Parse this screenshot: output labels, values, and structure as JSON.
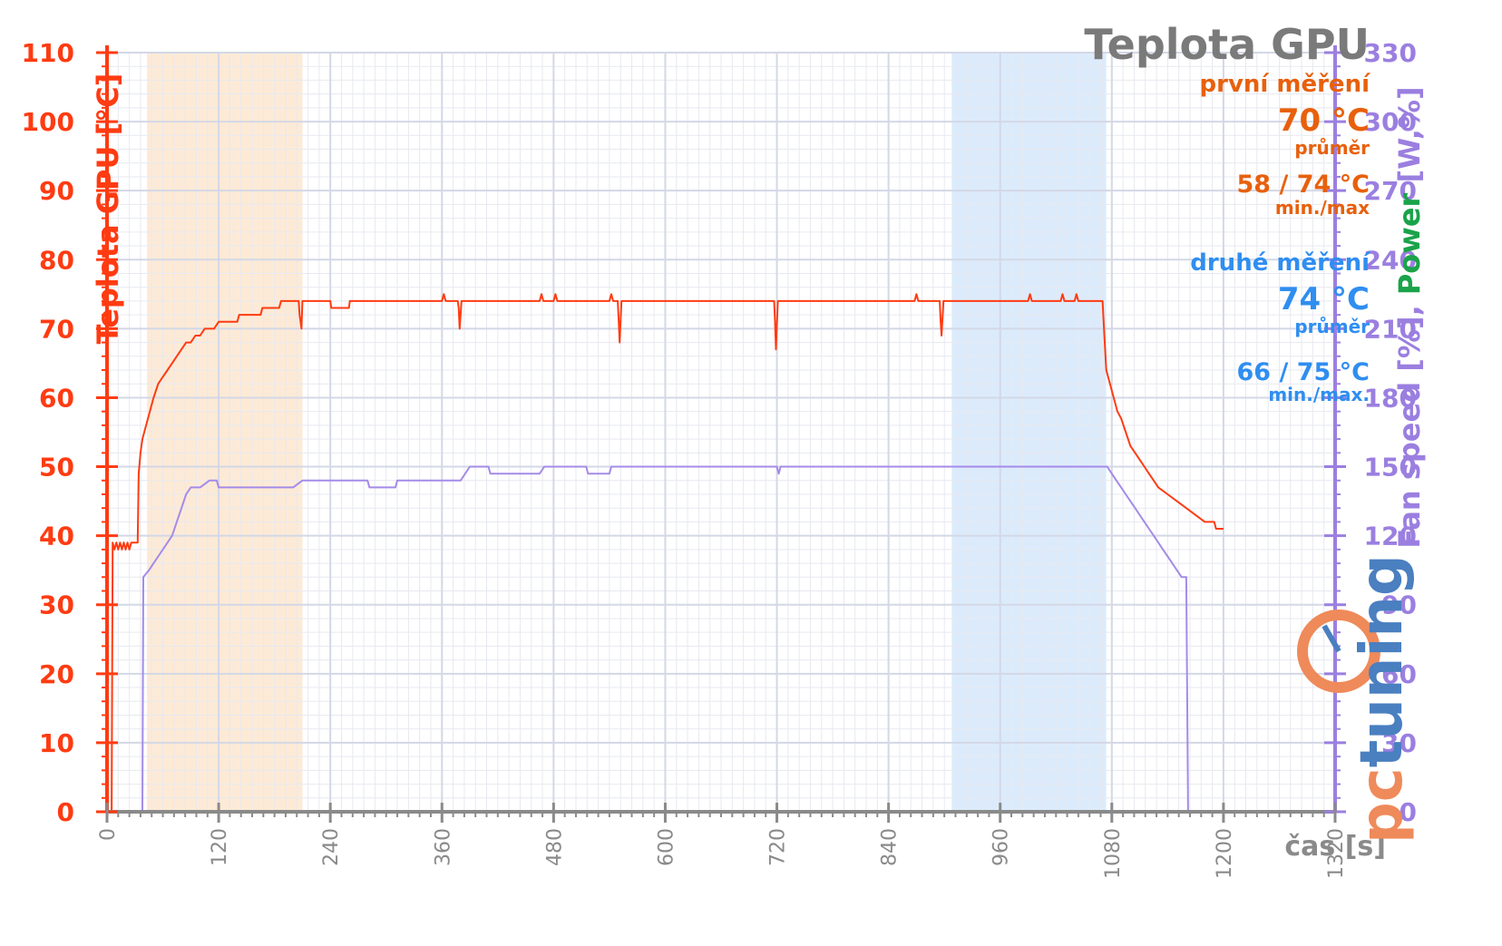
{
  "chart_data": {
    "type": "line",
    "title": "Teplota GPU",
    "xlabel": "čas [s]",
    "ylabel": "Teplota GPU [°C]",
    "y2label_parts": [
      {
        "text": "Fan speed [%], ",
        "color": "#9b7fe0"
      },
      {
        "text": "Power",
        "color": "#1aa34a"
      },
      {
        "text": " [W,%]",
        "color": "#9b7fe0"
      }
    ],
    "xlim": [
      0,
      1320
    ],
    "ylim": [
      0,
      110
    ],
    "y2lim": [
      0,
      330
    ],
    "x_ticks": [
      0,
      120,
      240,
      360,
      480,
      600,
      720,
      840,
      960,
      1080,
      1200,
      1320
    ],
    "y_ticks": [
      0,
      10,
      20,
      30,
      40,
      50,
      60,
      70,
      80,
      90,
      100,
      110
    ],
    "y2_ticks": [
      0,
      30,
      60,
      90,
      120,
      150,
      180,
      210,
      240,
      270,
      300,
      330
    ],
    "grid": true,
    "shaded_regions": [
      {
        "x_start": 43,
        "x_end": 210,
        "color": "#fde6cf"
      },
      {
        "x_start": 908,
        "x_end": 1074,
        "color": "#d6e8fb"
      }
    ],
    "series": [
      {
        "axis": "left",
        "color": "#ff3b12",
        "points": [
          [
            0,
            0
          ],
          [
            5,
            0
          ],
          [
            6,
            39
          ],
          [
            8,
            38
          ],
          [
            10,
            39
          ],
          [
            12,
            38
          ],
          [
            14,
            39
          ],
          [
            16,
            38
          ],
          [
            18,
            39
          ],
          [
            20,
            38
          ],
          [
            22,
            39
          ],
          [
            24,
            38
          ],
          [
            26,
            39
          ],
          [
            33,
            39
          ],
          [
            34,
            49
          ],
          [
            36,
            52
          ],
          [
            38,
            54
          ],
          [
            42,
            56
          ],
          [
            46,
            58
          ],
          [
            50,
            60
          ],
          [
            55,
            62
          ],
          [
            60,
            63
          ],
          [
            65,
            64
          ],
          [
            70,
            65
          ],
          [
            75,
            66
          ],
          [
            80,
            67
          ],
          [
            85,
            68
          ],
          [
            90,
            68
          ],
          [
            95,
            69
          ],
          [
            100,
            69
          ],
          [
            105,
            70
          ],
          [
            115,
            70
          ],
          [
            120,
            71
          ],
          [
            140,
            71
          ],
          [
            142,
            72
          ],
          [
            165,
            72
          ],
          [
            167,
            73
          ],
          [
            185,
            73
          ],
          [
            187,
            74
          ],
          [
            195,
            74
          ],
          [
            206,
            74
          ],
          [
            207,
            72
          ],
          [
            208,
            71
          ],
          [
            209,
            70
          ],
          [
            210,
            74
          ],
          [
            240,
            74
          ],
          [
            241,
            73
          ],
          [
            260,
            73
          ],
          [
            261,
            74
          ],
          [
            270,
            74
          ],
          [
            360,
            74
          ],
          [
            362,
            75
          ],
          [
            364,
            74
          ],
          [
            377,
            74
          ],
          [
            378,
            73
          ],
          [
            379,
            70
          ],
          [
            381,
            74
          ],
          [
            465,
            74
          ],
          [
            467,
            75
          ],
          [
            469,
            74
          ],
          [
            480,
            74
          ],
          [
            482,
            75
          ],
          [
            484,
            74
          ],
          [
            540,
            74
          ],
          [
            542,
            75
          ],
          [
            544,
            74
          ],
          [
            549,
            74
          ],
          [
            550,
            71
          ],
          [
            551,
            68
          ],
          [
            553,
            74
          ],
          [
            717,
            74
          ],
          [
            718,
            71
          ],
          [
            719,
            67
          ],
          [
            721,
            74
          ],
          [
            868,
            74
          ],
          [
            870,
            75
          ],
          [
            872,
            74
          ],
          [
            895,
            74
          ],
          [
            896,
            71
          ],
          [
            897,
            69
          ],
          [
            899,
            74
          ],
          [
            990,
            74
          ],
          [
            992,
            75
          ],
          [
            994,
            74
          ],
          [
            1025,
            74
          ],
          [
            1027,
            75
          ],
          [
            1029,
            74
          ],
          [
            1040,
            74
          ],
          [
            1042,
            75
          ],
          [
            1044,
            74
          ],
          [
            1070,
            74
          ],
          [
            1072,
            69
          ],
          [
            1074,
            64
          ],
          [
            1078,
            62
          ],
          [
            1082,
            60
          ],
          [
            1086,
            58
          ],
          [
            1090,
            57
          ],
          [
            1095,
            55
          ],
          [
            1100,
            53
          ],
          [
            1105,
            52
          ],
          [
            1110,
            51
          ],
          [
            1115,
            50
          ],
          [
            1120,
            49
          ],
          [
            1125,
            48
          ],
          [
            1130,
            47
          ],
          [
            1140,
            46
          ],
          [
            1150,
            45
          ],
          [
            1160,
            44
          ],
          [
            1170,
            43
          ],
          [
            1180,
            42
          ],
          [
            1190,
            42
          ],
          [
            1192,
            41
          ],
          [
            1200,
            41
          ]
        ]
      },
      {
        "axis": "right",
        "color": "#a48be8",
        "points": [
          [
            0,
            0
          ],
          [
            38,
            0
          ],
          [
            39,
            102
          ],
          [
            45,
            105
          ],
          [
            50,
            108
          ],
          [
            55,
            111
          ],
          [
            60,
            114
          ],
          [
            65,
            117
          ],
          [
            70,
            120
          ],
          [
            75,
            126
          ],
          [
            80,
            132
          ],
          [
            85,
            138
          ],
          [
            90,
            141
          ],
          [
            100,
            141
          ],
          [
            110,
            144
          ],
          [
            118,
            144
          ],
          [
            120,
            141
          ],
          [
            200,
            141
          ],
          [
            210,
            144
          ],
          [
            280,
            144
          ],
          [
            282,
            141
          ],
          [
            310,
            141
          ],
          [
            312,
            144
          ],
          [
            380,
            144
          ],
          [
            385,
            147
          ],
          [
            390,
            150
          ],
          [
            410,
            150
          ],
          [
            412,
            147
          ],
          [
            465,
            147
          ],
          [
            470,
            150
          ],
          [
            515,
            150
          ],
          [
            517,
            147
          ],
          [
            540,
            147
          ],
          [
            542,
            150
          ],
          [
            720,
            150
          ],
          [
            722,
            147
          ],
          [
            724,
            150
          ],
          [
            1075,
            150
          ],
          [
            1080,
            147
          ],
          [
            1085,
            144
          ],
          [
            1090,
            141
          ],
          [
            1095,
            138
          ],
          [
            1100,
            135
          ],
          [
            1105,
            132
          ],
          [
            1110,
            129
          ],
          [
            1115,
            126
          ],
          [
            1120,
            123
          ],
          [
            1125,
            120
          ],
          [
            1130,
            117
          ],
          [
            1135,
            114
          ],
          [
            1140,
            111
          ],
          [
            1145,
            108
          ],
          [
            1150,
            105
          ],
          [
            1155,
            102
          ],
          [
            1160,
            102
          ],
          [
            1162,
            0
          ],
          [
            1170,
            0
          ],
          [
            1198,
            0
          ]
        ]
      }
    ],
    "legend": {
      "first_label": "první měření",
      "first_avg": "70 °C",
      "first_avg_caption": "průměr",
      "first_minmax": "58 / 74 °C",
      "first_minmax_caption": "min./max",
      "first_color": "#e8600c",
      "second_label": "druhé měření",
      "second_avg": "74 °C",
      "second_avg_caption": "průměr",
      "second_minmax": "66 / 75 °C",
      "second_minmax_caption": "min./max.",
      "second_color": "#2f8ef0"
    },
    "logo": {
      "text": "pctuning",
      "colors": {
        "p": "#ef8a5a",
        "c": "#ef8a5a",
        "rest": "#4a7fc0"
      }
    }
  }
}
